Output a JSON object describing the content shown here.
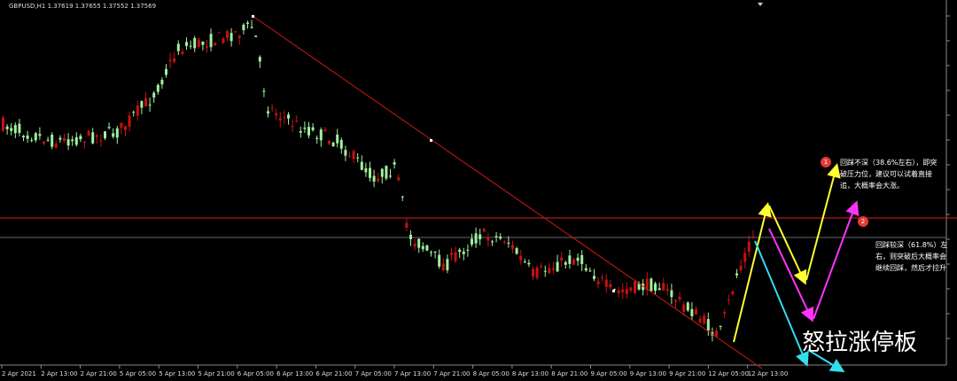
{
  "header": {
    "symbol_info": "GBPUSD,H1  1.37619 1.37655 1.37552 1.37569"
  },
  "time_axis": {
    "labels": [
      "2 Apr 2021",
      "2 Apr 13:00",
      "2 Apr 21:00",
      "5 Apr 05:00",
      "5 Apr 13:00",
      "5 Apr 21:00",
      "6 Apr 05:00",
      "6 Apr 13:00",
      "6 Apr 21:00",
      "7 Apr 05:00",
      "7 Apr 13:00",
      "7 Apr 21:00",
      "8 Apr 05:00",
      "8 Apr 13:00",
      "8 Apr 21:00",
      "9 Apr 05:00",
      "9 Apr 13:00",
      "9 Apr 21:00",
      "12 Apr 05:00",
      "12 Apr 13:00"
    ]
  },
  "annotations": [
    {
      "number": "1",
      "text": "回踩不深（38.6%左右），即突破压力位，建议可以试着直接追，大概率会大涨。"
    },
    {
      "number": "2",
      "text": "回踩较深（61.8%）左右，则突破后大概率会继续回踩，然后才拉升"
    }
  ],
  "watermark": "怒拉涨停板"
}
